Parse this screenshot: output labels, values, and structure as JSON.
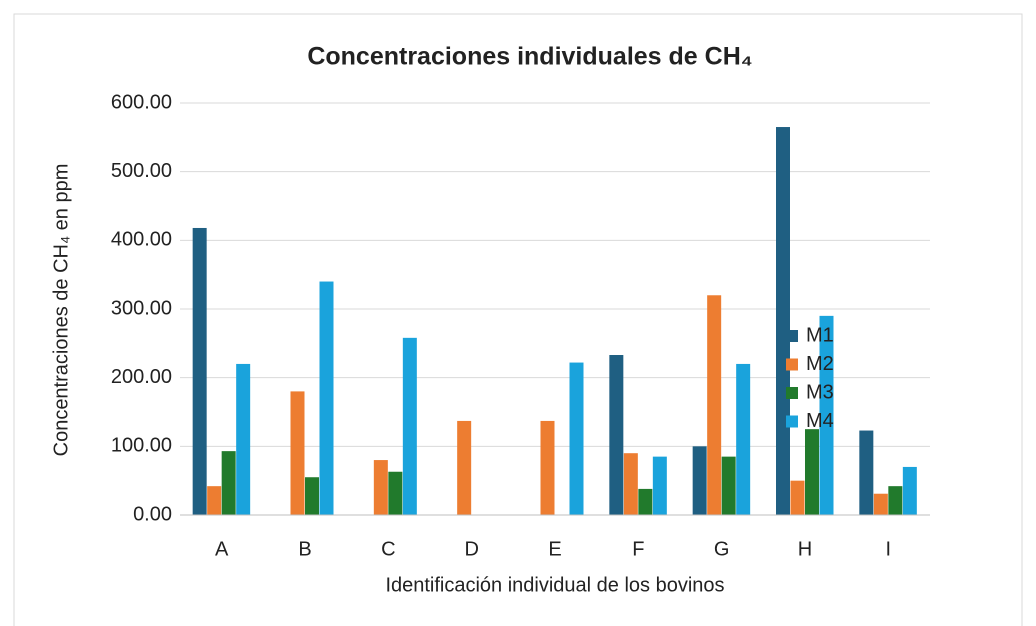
{
  "chart_data": {
    "type": "bar",
    "title": "Concentraciones individuales de CH₄",
    "x_label": "Identificación individual de los bovinos",
    "y_label": "Concentraciones de CH₄ en ppm",
    "categories": [
      "A",
      "B",
      "C",
      "D",
      "E",
      "F",
      "G",
      "H",
      "I"
    ],
    "series": [
      {
        "name": "M1",
        "color": "#1f5f82",
        "values": [
          418,
          0,
          0,
          0,
          0,
          233,
          100,
          565,
          123
        ]
      },
      {
        "name": "M2",
        "color": "#ed7d31",
        "values": [
          42,
          180,
          80,
          137,
          137,
          90,
          320,
          50,
          31
        ]
      },
      {
        "name": "M3",
        "color": "#217a2c",
        "values": [
          93,
          55,
          63,
          0,
          0,
          38,
          85,
          125,
          42
        ]
      },
      {
        "name": "M4",
        "color": "#1aa3dc",
        "values": [
          220,
          340,
          258,
          0,
          222,
          85,
          220,
          290,
          70
        ]
      }
    ],
    "ylim": [
      0,
      600
    ],
    "yticks": [
      {
        "value": 0,
        "label": "0.00"
      },
      {
        "value": 100,
        "label": "100.00"
      },
      {
        "value": 200,
        "label": "200.00"
      },
      {
        "value": 300,
        "label": "300.00"
      },
      {
        "value": 400,
        "label": "400.00"
      },
      {
        "value": 500,
        "label": "500.00"
      },
      {
        "value": 600,
        "label": "600.00"
      }
    ],
    "grid": true,
    "legend": "right"
  }
}
